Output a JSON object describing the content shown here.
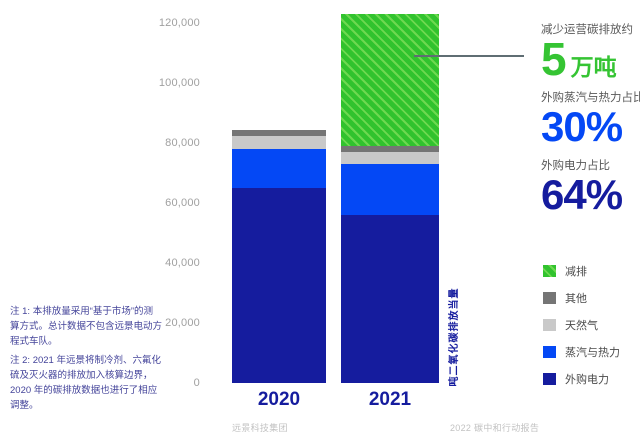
{
  "chart_data": {
    "type": "bar",
    "stacked": true,
    "categories": [
      "2020",
      "2021"
    ],
    "series": [
      {
        "name": "外购电力",
        "color": "#151c9e",
        "values": [
          65000,
          56000
        ]
      },
      {
        "name": "蒸汽与热力",
        "color": "#0448f5",
        "values": [
          13000,
          17000
        ]
      },
      {
        "name": "天然气",
        "color": "#c9c9c9",
        "values": [
          4500,
          4000
        ]
      },
      {
        "name": "其他",
        "color": "#757575",
        "values": [
          2000,
          2000
        ]
      },
      {
        "name": "减排",
        "color": "#31c32e",
        "hatch": true,
        "hatch_color": "#6ed850",
        "values": [
          0,
          44000
        ]
      }
    ],
    "totals": {
      "2020": 84500,
      "2021_actual": 79000,
      "2021_incl_reduction": 123000
    },
    "ylabel": "吨二氧化碳排放当量",
    "yticks": [
      0,
      20000,
      40000,
      60000,
      80000,
      100000,
      120000
    ],
    "ytick_labels": [
      "0",
      "20,000",
      "40,000",
      "60,000",
      "80,000",
      "100,000",
      "120,000"
    ],
    "ylim": [
      0,
      123500
    ],
    "grid": false,
    "legend_position": "right",
    "legend_order": "top-to-bottom reversed vs stack"
  },
  "stats": {
    "s1": {
      "label": "减少运营碳排放约",
      "value": "5",
      "unit": "万吨",
      "color": "#35c433"
    },
    "s2": {
      "label": "外购蒸汽与热力占比",
      "value": "30%",
      "color": "#0448f5"
    },
    "s3": {
      "label": "外购电力占比",
      "value": "64%",
      "color": "#151c9e"
    }
  },
  "notes": {
    "note1": "注 1: 本排放量采用“基于市场”的测算方式。总计数据不包含远景电动方程式车队。",
    "note2": "注 2: 2021 年远景将制冷剂、六氟化硫及灭火器的排放加入核算边界，2020 年的碳排放数据也进行了相应调整。"
  },
  "footer": {
    "left": "远景科技集团",
    "right": "2022 碳中和行动报告"
  },
  "colors": {
    "navy": "#151c9e",
    "blue": "#0448f5",
    "green": "#31c32e",
    "green_hatch": "#6ed850",
    "gray_dark": "#757575",
    "gray_light": "#c9c9c9",
    "stat_label_gray": "#595959",
    "tick_gray": "#a0a0a0",
    "footer_gray": "#c2c2c2",
    "note_navy": "#44449a",
    "annotation_line": "#5f6d73"
  }
}
